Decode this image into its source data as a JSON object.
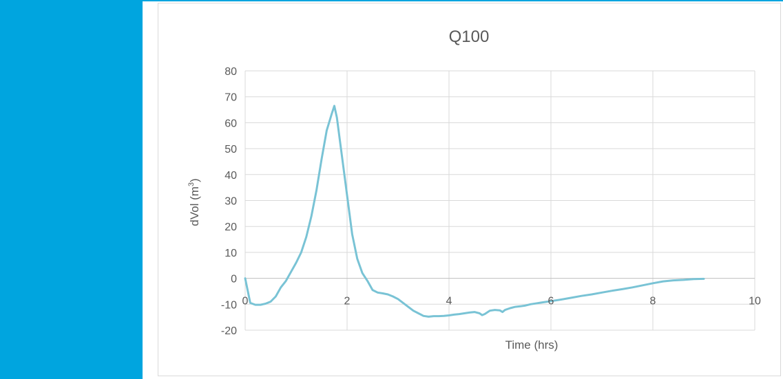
{
  "theme": {
    "accent": "#00a5df",
    "line_color": "#79c3d5",
    "grid_color": "#d9d9d9"
  },
  "chart_data": {
    "type": "line",
    "title": "Q100",
    "xlabel": "Time (hrs)",
    "ylabel_main": "dVol (m",
    "ylabel_sup": "3",
    "ylabel_close": ")",
    "xlim": [
      0,
      10
    ],
    "ylim": [
      -20,
      80
    ],
    "x_ticks": [
      0,
      2,
      4,
      6,
      8,
      10
    ],
    "y_ticks": [
      -20,
      -10,
      0,
      10,
      20,
      30,
      40,
      50,
      60,
      70,
      80
    ],
    "grid": true,
    "legend": "none",
    "series": [
      {
        "x": [
          0,
          0.1,
          0.2,
          0.3,
          0.4,
          0.5,
          0.6,
          0.7,
          0.8,
          0.9,
          1.0,
          1.1,
          1.2,
          1.3,
          1.4,
          1.5,
          1.6,
          1.7,
          1.75,
          1.8,
          1.9,
          2.0,
          2.1,
          2.2,
          2.3,
          2.4,
          2.5,
          2.6,
          2.7,
          2.8,
          2.9,
          3.0,
          3.1,
          3.2,
          3.3,
          3.4,
          3.5,
          3.6,
          3.7,
          3.8,
          3.9,
          4.0,
          4.1,
          4.2,
          4.3,
          4.4,
          4.5,
          4.6,
          4.65,
          4.7,
          4.8,
          4.9,
          5.0,
          5.05,
          5.1,
          5.2,
          5.3,
          5.4,
          5.5,
          5.6,
          5.7,
          5.8,
          5.9,
          6.0,
          6.2,
          6.4,
          6.6,
          6.8,
          7.0,
          7.2,
          7.4,
          7.6,
          7.8,
          8.0,
          8.2,
          8.4,
          8.6,
          8.8,
          9.0
        ],
        "y": [
          0,
          -9.5,
          -10.2,
          -10.2,
          -9.8,
          -9.0,
          -7.0,
          -3.5,
          -1.0,
          2.5,
          6.0,
          10.0,
          16.0,
          24.0,
          34.0,
          46.0,
          57.0,
          63.5,
          66.5,
          62.0,
          47.0,
          32.0,
          17.0,
          7.5,
          2.0,
          -1.0,
          -4.5,
          -5.5,
          -5.8,
          -6.2,
          -7.0,
          -8.0,
          -9.5,
          -11.0,
          -12.5,
          -13.5,
          -14.5,
          -14.8,
          -14.6,
          -14.6,
          -14.5,
          -14.3,
          -14.0,
          -13.8,
          -13.5,
          -13.2,
          -13.0,
          -13.5,
          -14.2,
          -13.8,
          -12.5,
          -12.2,
          -12.4,
          -13.0,
          -12.2,
          -11.5,
          -11.0,
          -10.8,
          -10.5,
          -10.0,
          -9.7,
          -9.4,
          -9.1,
          -8.8,
          -8.2,
          -7.5,
          -6.8,
          -6.2,
          -5.5,
          -4.8,
          -4.2,
          -3.5,
          -2.7,
          -1.9,
          -1.2,
          -0.8,
          -0.6,
          -0.3,
          -0.2
        ]
      }
    ]
  }
}
